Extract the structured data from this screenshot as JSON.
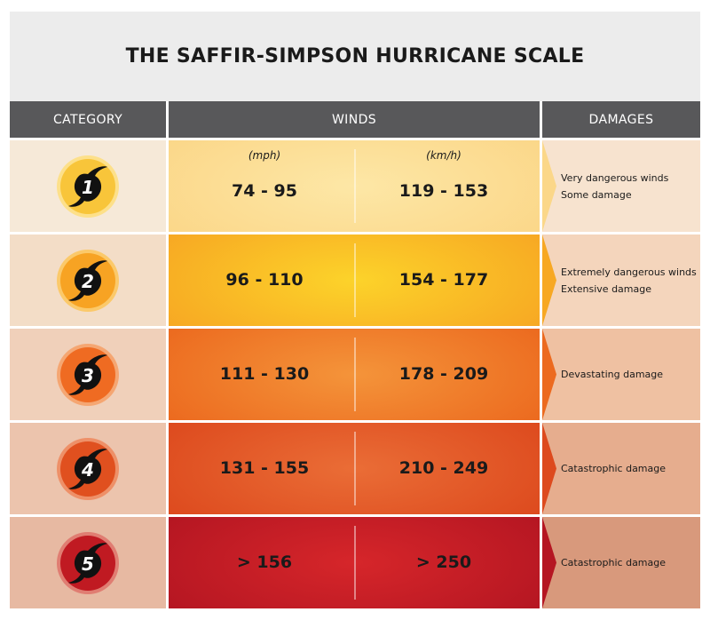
{
  "title": "THE SAFFIR-SIMPSON HURRICANE SCALE",
  "headers": {
    "category": "CATEGORY",
    "winds": "WINDS",
    "damages": "DAMAGES"
  },
  "units": {
    "mph": "(mph)",
    "kmh": "(km/h)"
  },
  "rows": [
    {
      "category": "1",
      "mph": "74 - 95",
      "kmh": "119 - 153",
      "damage": [
        "Very dangerous winds",
        "Some damage"
      ],
      "colors": {
        "cat_bg": "#f6e9d8",
        "wind_left": "#fbd789",
        "wind_mid": "#fde7a6",
        "dmg_bg": "#f7e3cf",
        "badge": "#f8c53a",
        "badge_ring": "#fde08a",
        "arrow": "#fbd789"
      }
    },
    {
      "category": "2",
      "mph": "96 - 110",
      "kmh": "154 - 177",
      "damage": [
        "Extremely dangerous winds",
        "Extensive damage"
      ],
      "colors": {
        "cat_bg": "#f3ddc7",
        "wind_left": "#f7a823",
        "wind_mid": "#fcd32a",
        "dmg_bg": "#f4d5bc",
        "badge": "#f7a323",
        "badge_ring": "#fbc96a",
        "arrow": "#f7a823"
      }
    },
    {
      "category": "3",
      "mph": "111 - 130",
      "kmh": "178 - 209",
      "damage": [
        "Devastating damage"
      ],
      "colors": {
        "cat_bg": "#f0d0ba",
        "wind_left": "#ec6a1f",
        "wind_mid": "#f4943a",
        "dmg_bg": "#efc1a2",
        "badge": "#ef6b22",
        "badge_ring": "#f5a672",
        "arrow": "#ec6a1f"
      }
    },
    {
      "category": "4",
      "mph": "131 - 155",
      "kmh": "210 - 249",
      "damage": [
        "Catastrophic damage"
      ],
      "colors": {
        "cat_bg": "#ecc4ad",
        "wind_left": "#dd4a1e",
        "wind_mid": "#ea6d36",
        "dmg_bg": "#e6ad8e",
        "badge": "#e0501f",
        "badge_ring": "#ee9068",
        "arrow": "#dd4a1e"
      }
    },
    {
      "category": "5",
      "mph": "> 156",
      "kmh": "> 250",
      "damage": [
        "Catastrophic damage"
      ],
      "colors": {
        "cat_bg": "#e7b9a2",
        "wind_left": "#b51622",
        "wind_mid": "#d6262a",
        "dmg_bg": "#d8997c",
        "badge": "#c01a22",
        "badge_ring": "#e07d72",
        "arrow": "#b51622"
      }
    }
  ],
  "icon": "hurricane-icon"
}
